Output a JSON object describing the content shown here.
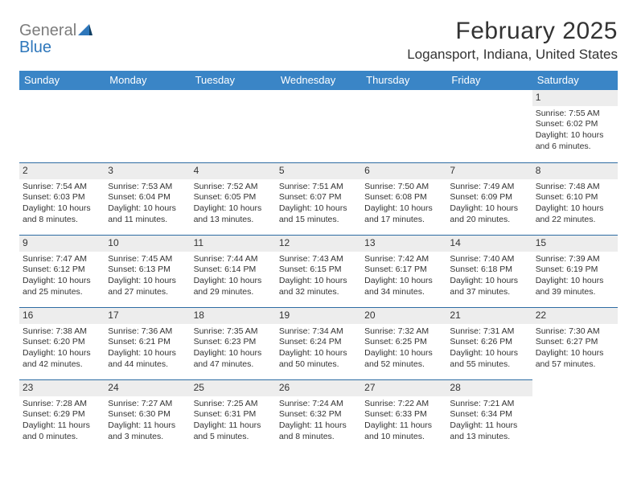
{
  "logo": {
    "general": "General",
    "blue": "Blue"
  },
  "title": "February 2025",
  "location": "Logansport, Indiana, United States",
  "colors": {
    "header_bg": "#3a85c6",
    "header_text": "#ffffff",
    "cell_border": "#2e6ca3",
    "daynum_bg": "#ededed",
    "text": "#333333",
    "logo_gray": "#7c7c7c",
    "logo_blue": "#2e77bb",
    "background": "#ffffff"
  },
  "typography": {
    "title_fontsize": 30,
    "location_fontsize": 17,
    "dayhead_fontsize": 13,
    "daynum_fontsize": 12,
    "body_fontsize": 10.5,
    "logo_fontsize": 20
  },
  "layout": {
    "columns": 7,
    "rows": 5,
    "leading_empty": 6
  },
  "day_names": [
    "Sunday",
    "Monday",
    "Tuesday",
    "Wednesday",
    "Thursday",
    "Friday",
    "Saturday"
  ],
  "days": [
    {
      "n": "1",
      "sunrise": "Sunrise: 7:55 AM",
      "sunset": "Sunset: 6:02 PM",
      "daylight": "Daylight: 10 hours and 6 minutes."
    },
    {
      "n": "2",
      "sunrise": "Sunrise: 7:54 AM",
      "sunset": "Sunset: 6:03 PM",
      "daylight": "Daylight: 10 hours and 8 minutes."
    },
    {
      "n": "3",
      "sunrise": "Sunrise: 7:53 AM",
      "sunset": "Sunset: 6:04 PM",
      "daylight": "Daylight: 10 hours and 11 minutes."
    },
    {
      "n": "4",
      "sunrise": "Sunrise: 7:52 AM",
      "sunset": "Sunset: 6:05 PM",
      "daylight": "Daylight: 10 hours and 13 minutes."
    },
    {
      "n": "5",
      "sunrise": "Sunrise: 7:51 AM",
      "sunset": "Sunset: 6:07 PM",
      "daylight": "Daylight: 10 hours and 15 minutes."
    },
    {
      "n": "6",
      "sunrise": "Sunrise: 7:50 AM",
      "sunset": "Sunset: 6:08 PM",
      "daylight": "Daylight: 10 hours and 17 minutes."
    },
    {
      "n": "7",
      "sunrise": "Sunrise: 7:49 AM",
      "sunset": "Sunset: 6:09 PM",
      "daylight": "Daylight: 10 hours and 20 minutes."
    },
    {
      "n": "8",
      "sunrise": "Sunrise: 7:48 AM",
      "sunset": "Sunset: 6:10 PM",
      "daylight": "Daylight: 10 hours and 22 minutes."
    },
    {
      "n": "9",
      "sunrise": "Sunrise: 7:47 AM",
      "sunset": "Sunset: 6:12 PM",
      "daylight": "Daylight: 10 hours and 25 minutes."
    },
    {
      "n": "10",
      "sunrise": "Sunrise: 7:45 AM",
      "sunset": "Sunset: 6:13 PM",
      "daylight": "Daylight: 10 hours and 27 minutes."
    },
    {
      "n": "11",
      "sunrise": "Sunrise: 7:44 AM",
      "sunset": "Sunset: 6:14 PM",
      "daylight": "Daylight: 10 hours and 29 minutes."
    },
    {
      "n": "12",
      "sunrise": "Sunrise: 7:43 AM",
      "sunset": "Sunset: 6:15 PM",
      "daylight": "Daylight: 10 hours and 32 minutes."
    },
    {
      "n": "13",
      "sunrise": "Sunrise: 7:42 AM",
      "sunset": "Sunset: 6:17 PM",
      "daylight": "Daylight: 10 hours and 34 minutes."
    },
    {
      "n": "14",
      "sunrise": "Sunrise: 7:40 AM",
      "sunset": "Sunset: 6:18 PM",
      "daylight": "Daylight: 10 hours and 37 minutes."
    },
    {
      "n": "15",
      "sunrise": "Sunrise: 7:39 AM",
      "sunset": "Sunset: 6:19 PM",
      "daylight": "Daylight: 10 hours and 39 minutes."
    },
    {
      "n": "16",
      "sunrise": "Sunrise: 7:38 AM",
      "sunset": "Sunset: 6:20 PM",
      "daylight": "Daylight: 10 hours and 42 minutes."
    },
    {
      "n": "17",
      "sunrise": "Sunrise: 7:36 AM",
      "sunset": "Sunset: 6:21 PM",
      "daylight": "Daylight: 10 hours and 44 minutes."
    },
    {
      "n": "18",
      "sunrise": "Sunrise: 7:35 AM",
      "sunset": "Sunset: 6:23 PM",
      "daylight": "Daylight: 10 hours and 47 minutes."
    },
    {
      "n": "19",
      "sunrise": "Sunrise: 7:34 AM",
      "sunset": "Sunset: 6:24 PM",
      "daylight": "Daylight: 10 hours and 50 minutes."
    },
    {
      "n": "20",
      "sunrise": "Sunrise: 7:32 AM",
      "sunset": "Sunset: 6:25 PM",
      "daylight": "Daylight: 10 hours and 52 minutes."
    },
    {
      "n": "21",
      "sunrise": "Sunrise: 7:31 AM",
      "sunset": "Sunset: 6:26 PM",
      "daylight": "Daylight: 10 hours and 55 minutes."
    },
    {
      "n": "22",
      "sunrise": "Sunrise: 7:30 AM",
      "sunset": "Sunset: 6:27 PM",
      "daylight": "Daylight: 10 hours and 57 minutes."
    },
    {
      "n": "23",
      "sunrise": "Sunrise: 7:28 AM",
      "sunset": "Sunset: 6:29 PM",
      "daylight": "Daylight: 11 hours and 0 minutes."
    },
    {
      "n": "24",
      "sunrise": "Sunrise: 7:27 AM",
      "sunset": "Sunset: 6:30 PM",
      "daylight": "Daylight: 11 hours and 3 minutes."
    },
    {
      "n": "25",
      "sunrise": "Sunrise: 7:25 AM",
      "sunset": "Sunset: 6:31 PM",
      "daylight": "Daylight: 11 hours and 5 minutes."
    },
    {
      "n": "26",
      "sunrise": "Sunrise: 7:24 AM",
      "sunset": "Sunset: 6:32 PM",
      "daylight": "Daylight: 11 hours and 8 minutes."
    },
    {
      "n": "27",
      "sunrise": "Sunrise: 7:22 AM",
      "sunset": "Sunset: 6:33 PM",
      "daylight": "Daylight: 11 hours and 10 minutes."
    },
    {
      "n": "28",
      "sunrise": "Sunrise: 7:21 AM",
      "sunset": "Sunset: 6:34 PM",
      "daylight": "Daylight: 11 hours and 13 minutes."
    }
  ]
}
